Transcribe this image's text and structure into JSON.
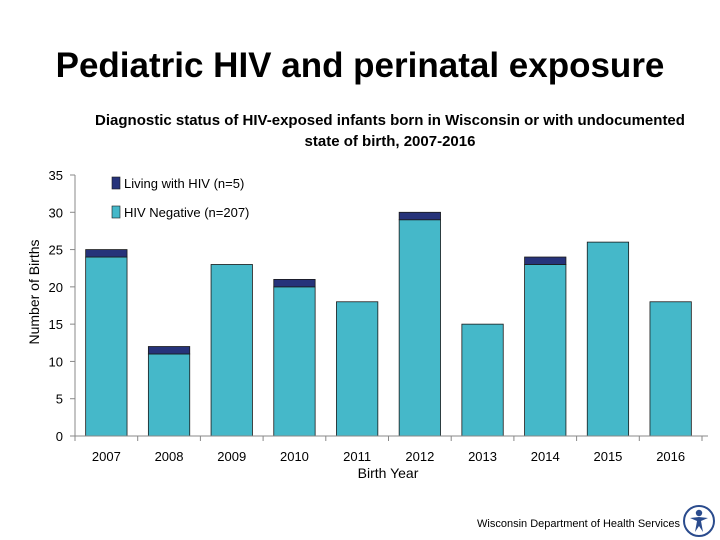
{
  "slide": {
    "title": "Pediatric HIV and perinatal exposure",
    "footer": "Wisconsin Department of Health Services"
  },
  "colors": {
    "negative": "#45B8C9",
    "living": "#26337A",
    "bar_stroke": "#1a1a1a"
  },
  "chart_data": {
    "type": "bar",
    "stacked": true,
    "title_line1": "Diagnostic status of HIV-exposed infants born in Wisconsin or with undocumented",
    "title_line2": "state of birth, 2007-2016",
    "xlabel": "Birth Year",
    "ylabel": "Number of Births",
    "ylim": [
      0,
      35
    ],
    "yticks": [
      0,
      5,
      10,
      15,
      20,
      25,
      30,
      35
    ],
    "categories": [
      "2007",
      "2008",
      "2009",
      "2010",
      "2011",
      "2012",
      "2013",
      "2014",
      "2015",
      "2016"
    ],
    "series": [
      {
        "name": "HIV Negative (n=207)",
        "values": [
          24,
          11,
          23,
          20,
          18,
          29,
          15,
          23,
          26,
          18
        ]
      },
      {
        "name": "Living with HIV (n=5)",
        "values": [
          1,
          1,
          0,
          1,
          0,
          1,
          0,
          1,
          0,
          0
        ]
      }
    ],
    "legend": [
      "Living with HIV (n=5)",
      "HIV Negative (n=207)"
    ],
    "legend_position": "top-left",
    "grid": false
  }
}
